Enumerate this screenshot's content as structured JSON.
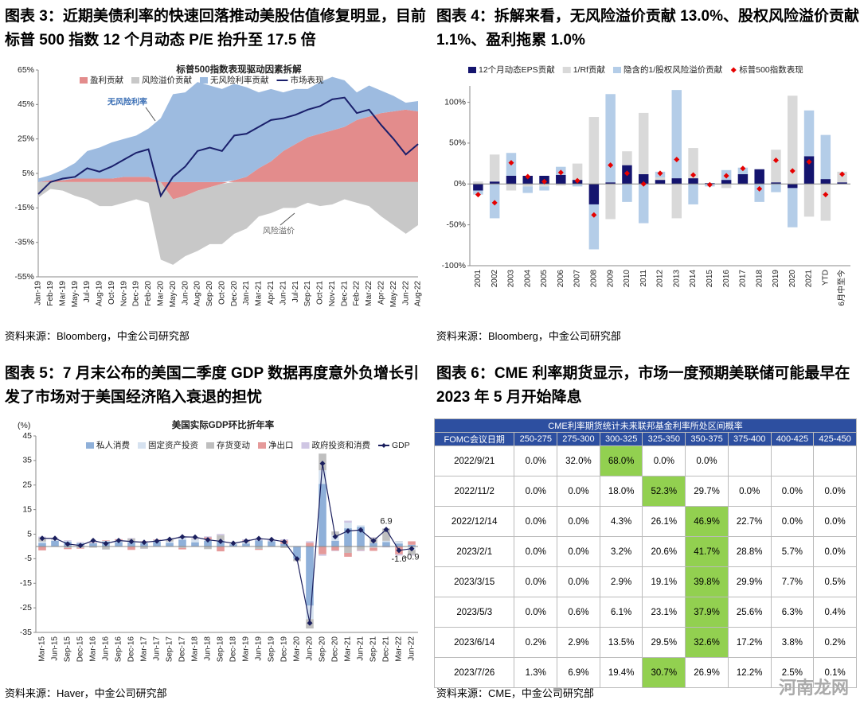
{
  "figures": [
    {
      "heading": "图表 3：近期美债利率的快速回落推动美股估值修复明显，目前标普 500 指数 12 个月动态 P/E 抬升至 17.5 倍",
      "source": "资料来源：Bloomberg，中金公司研究部"
    },
    {
      "heading": "图表 4：拆解来看，无风险溢价贡献 13.0%、股权风险溢价贡献 1.1%、盈利拖累 1.0%",
      "source": "资料来源：Bloomberg，中金公司研究部"
    },
    {
      "heading": "图表 5：7 月末公布的美国二季度 GDP 数据再度意外负增长引发了市场对于美国经济陷入衰退的担忧",
      "source": "资料来源：Haver，中金公司研究部"
    },
    {
      "heading": "图表 6：CME 利率期货显示，市场一度预期美联储可能最早在 2023 年 5 月开始降息",
      "source": "资料来源：CME，中金公司研究部"
    }
  ],
  "chart_data": [
    {
      "type": "area",
      "title": "标普500指数表现驱动因素拆解",
      "categories": [
        "Jan-19",
        "Feb-19",
        "Mar-19",
        "May-19",
        "Jul-19",
        "Aug-19",
        "Oct-19",
        "Nov-19",
        "Dec-19",
        "Feb-20",
        "Mar-20",
        "May-20",
        "Jun-20",
        "Aug-20",
        "Sep-20",
        "Oct-20",
        "Dec-20",
        "Jan-21",
        "Mar-21",
        "Apr-21",
        "Jun-21",
        "Jul-21",
        "Sep-21",
        "Oct-21",
        "Nov-21",
        "Dec-21",
        "Feb-22",
        "Mar-22",
        "Apr-22",
        "May-22",
        "Jun-22",
        "Aug-22"
      ],
      "series": [
        {
          "name": "盈利贡献",
          "type": "area",
          "color": "#e38c8c",
          "values": [
            0,
            1,
            1,
            2,
            2,
            2,
            2,
            3,
            3,
            3,
            0,
            -10,
            -8,
            -5,
            -3,
            -1,
            1,
            3,
            8,
            12,
            18,
            22,
            26,
            28,
            30,
            32,
            36,
            38,
            40,
            41,
            42,
            41
          ]
        },
        {
          "name": "风险溢价贡献",
          "type": "area",
          "color": "#c8c8c8",
          "values": [
            -9,
            -4,
            -5,
            -8,
            -10,
            -14,
            -14,
            -12,
            -10,
            -12,
            -45,
            -38,
            -35,
            -35,
            -33,
            -35,
            -30,
            -27,
            -20,
            -18,
            -15,
            -15,
            -12,
            -14,
            -13,
            -10,
            -12,
            -14,
            -20,
            -25,
            -30,
            -25
          ]
        },
        {
          "name": "无风险利率贡献",
          "type": "area",
          "color": "#9dbbe0",
          "values": [
            2,
            3,
            6,
            9,
            16,
            18,
            21,
            22,
            24,
            28,
            37,
            51,
            52,
            58,
            56,
            54,
            56,
            52,
            44,
            42,
            34,
            32,
            28,
            30,
            31,
            27,
            16,
            18,
            13,
            9,
            4,
            6
          ]
        },
        {
          "name": "市场表现",
          "type": "line",
          "color": "#1a1f6b",
          "values": [
            -7,
            0,
            2,
            3,
            8,
            6,
            9,
            13,
            17,
            19,
            -8,
            3,
            9,
            18,
            20,
            18,
            27,
            28,
            32,
            36,
            37,
            39,
            42,
            44,
            48,
            49,
            40,
            42,
            33,
            25,
            16,
            22
          ]
        }
      ],
      "ylim": [
        -55,
        65
      ],
      "yticks": [
        {
          "value": 65,
          "label": "65%"
        },
        {
          "value": 45,
          "label": "45%"
        },
        {
          "value": 25,
          "label": "25%"
        },
        {
          "value": 5,
          "label": "5%"
        },
        {
          "value": -15,
          "label": "-15%"
        },
        {
          "value": -35,
          "label": "-35%"
        },
        {
          "value": -55,
          "label": "-55%"
        }
      ],
      "annotations": [
        "无风险利率",
        "风险溢价"
      ],
      "legend": "top",
      "grid": false
    },
    {
      "type": "bar",
      "categories": [
        "2001",
        "2002",
        "2003",
        "2004",
        "2005",
        "2006",
        "2007",
        "2008",
        "2009",
        "2010",
        "2011",
        "2012",
        "2013",
        "2014",
        "2015",
        "2016",
        "2017",
        "2018",
        "2019",
        "2020",
        "2021",
        "YTD",
        "6月中至今"
      ],
      "series": [
        {
          "name": "12个月动态EPS贡献",
          "type": "bar",
          "color": "#14146e",
          "values": [
            -8,
            3,
            10,
            10,
            10,
            11,
            5,
            -25,
            2,
            23,
            12,
            5,
            7,
            7,
            1,
            5,
            12,
            18,
            2,
            -5,
            34,
            6,
            2
          ]
        },
        {
          "name": "1/Rf贡献",
          "type": "bar",
          "color": "#d9d9d9",
          "values": [
            3,
            33,
            -8,
            -3,
            -3,
            -2,
            20,
            82,
            -43,
            17,
            75,
            3,
            -42,
            37,
            0,
            -5,
            -1,
            0,
            40,
            108,
            -40,
            -45,
            13
          ]
        },
        {
          "name": "隐含的1/股权风险溢价贡献",
          "type": "bar",
          "color": "#b4cde8",
          "values": [
            -5,
            -42,
            28,
            -8,
            -5,
            10,
            -3,
            -55,
            108,
            -22,
            -48,
            7,
            108,
            -25,
            -3,
            12,
            8,
            -22,
            -10,
            -48,
            56,
            54,
            0
          ]
        },
        {
          "name": "标普500指数表现",
          "type": "scatter",
          "color": "#e60000",
          "values": [
            -13,
            -23,
            26,
            9,
            3,
            14,
            4,
            -38,
            23,
            13,
            0,
            13,
            30,
            11,
            -1,
            10,
            19,
            -6,
            29,
            16,
            27,
            -13,
            12
          ]
        }
      ],
      "ylim": [
        -100,
        120
      ],
      "yticks": [
        {
          "value": 100,
          "label": "100%"
        },
        {
          "value": 50,
          "label": "50%"
        },
        {
          "value": 0,
          "label": "0%"
        },
        {
          "value": -50,
          "label": "-50%"
        },
        {
          "value": -100,
          "label": "-100%"
        }
      ],
      "legend": "top",
      "grid": false
    },
    {
      "type": "bar",
      "title": "美国实际GDP环比折年率",
      "unit": "(%)",
      "categories": [
        "Mar-15",
        "Jun-15",
        "Sep-15",
        "Dec-15",
        "Mar-16",
        "Jun-16",
        "Sep-16",
        "Dec-16",
        "Mar-17",
        "Jun-17",
        "Sep-17",
        "Dec-17",
        "Mar-18",
        "Jun-18",
        "Sep-18",
        "Dec-18",
        "Mar-19",
        "Jun-19",
        "Sep-19",
        "Dec-19",
        "Mar-20",
        "Jun-20",
        "Sep-20",
        "Dec-20",
        "Mar-21",
        "Jun-21",
        "Sep-21",
        "Dec-21",
        "Mar-22",
        "Jun-22"
      ],
      "series": [
        {
          "name": "私人消费",
          "type": "bar",
          "color": "#8fb0d9",
          "values": [
            1.4,
            2.3,
            1.9,
            1.3,
            1.3,
            2.0,
            1.8,
            1.6,
            1.3,
            1.9,
            1.5,
            2.7,
            1.7,
            2.3,
            2.4,
            0.9,
            1.2,
            2.5,
            2.1,
            1.1,
            -4.9,
            -24.1,
            25.5,
            2.3,
            7.4,
            8.0,
            1.4,
            1.8,
            1.2,
            0.7
          ]
        },
        {
          "name": "固定资产投资",
          "type": "bar",
          "color": "#d6e2f0",
          "values": [
            0.6,
            0.4,
            0.3,
            0.2,
            0.2,
            0.3,
            0.3,
            0.6,
            0.8,
            0.5,
            0.5,
            1.0,
            1.1,
            0.6,
            0.1,
            0.4,
            0.5,
            -0.1,
            0.1,
            0.0,
            -0.3,
            -5.5,
            5.5,
            2.3,
            2.3,
            0.6,
            -0.5,
            0.5,
            0.9,
            -1.4
          ]
        },
        {
          "name": "存货变动",
          "type": "bar",
          "color": "#bfbfbf",
          "values": [
            1.5,
            0.2,
            -0.6,
            -0.6,
            -0.5,
            -1.2,
            0.4,
            1.0,
            -0.9,
            0.2,
            1.0,
            -0.6,
            0.3,
            -1.1,
            2.1,
            0.1,
            0.4,
            -0.9,
            -0.1,
            -0.6,
            -0.8,
            -3.8,
            6.8,
            1.5,
            -2.6,
            -1.3,
            2.2,
            5.0,
            0.1,
            -2.0
          ]
        },
        {
          "name": "净出口",
          "type": "bar",
          "color": "#e59a9a",
          "values": [
            -1.6,
            0.0,
            -0.5,
            -0.3,
            0.1,
            0.2,
            0.4,
            -1.4,
            0.1,
            0.2,
            0.0,
            -0.6,
            0.0,
            0.8,
            -2.0,
            -0.1,
            0.3,
            -0.4,
            -0.1,
            1.4,
            0.0,
            1.5,
            -3.2,
            -1.7,
            -1.6,
            -0.2,
            -1.3,
            -0.2,
            -3.2,
            1.4
          ]
        },
        {
          "name": "政府投资和消费",
          "type": "bar",
          "color": "#cfc6e3",
          "values": [
            0.5,
            0.4,
            0.3,
            0.3,
            0.4,
            -0.1,
            0.1,
            0.2,
            -0.1,
            0.1,
            0.1,
            0.5,
            0.3,
            0.4,
            0.5,
            -0.1,
            0.5,
            0.8,
            0.6,
            0.4,
            0.2,
            0.6,
            -0.6,
            -0.2,
            0.8,
            -0.4,
            0.2,
            -0.2,
            -0.5,
            -0.3
          ]
        },
        {
          "name": "GDP",
          "type": "line",
          "marker": "diamond",
          "color": "#1b1f5e",
          "values": [
            3.3,
            3.3,
            1.0,
            0.4,
            2.4,
            1.2,
            2.4,
            2.0,
            1.7,
            2.2,
            2.9,
            3.9,
            3.8,
            2.7,
            2.1,
            1.3,
            2.2,
            3.2,
            2.8,
            1.9,
            -5.1,
            -31.2,
            33.8,
            4.0,
            6.3,
            6.7,
            2.3,
            6.9,
            -1.6,
            -0.9
          ],
          "value_labels": [
            null,
            null,
            null,
            null,
            null,
            null,
            null,
            null,
            null,
            null,
            null,
            null,
            null,
            null,
            null,
            null,
            null,
            null,
            null,
            null,
            null,
            null,
            null,
            null,
            null,
            null,
            null,
            "6.9",
            "-1.6",
            "-0.9"
          ]
        }
      ],
      "ylim": [
        -35,
        45
      ],
      "yticks": [
        45,
        35,
        25,
        15,
        5,
        -5,
        -15,
        -25,
        -35
      ],
      "legend": "top",
      "grid": false
    }
  ],
  "table": {
    "title": "CME利率期货统计未来联邦基金利率所处区间概率",
    "columns": [
      "FOMC会议日期",
      "250-275",
      "275-300",
      "300-325",
      "325-350",
      "350-375",
      "375-400",
      "400-425",
      "425-450"
    ],
    "rows": [
      [
        "2022/9/21",
        "0.0%",
        "32.0%",
        "68.0%",
        "0.0%",
        "0.0%",
        null,
        null,
        null
      ],
      [
        "2022/11/2",
        "0.0%",
        "0.0%",
        "18.0%",
        "52.3%",
        "29.7%",
        "0.0%",
        "0.0%",
        "0.0%"
      ],
      [
        "2022/12/14",
        "0.0%",
        "0.0%",
        "4.3%",
        "26.1%",
        "46.9%",
        "22.7%",
        "0.0%",
        "0.0%"
      ],
      [
        "2023/2/1",
        "0.0%",
        "0.0%",
        "3.2%",
        "20.6%",
        "41.7%",
        "28.8%",
        "5.7%",
        "0.0%"
      ],
      [
        "2023/3/15",
        "0.0%",
        "0.0%",
        "2.9%",
        "19.1%",
        "39.8%",
        "29.9%",
        "7.7%",
        "0.5%"
      ],
      [
        "2023/5/3",
        "0.0%",
        "0.6%",
        "6.1%",
        "23.1%",
        "37.9%",
        "25.6%",
        "6.3%",
        "0.4%"
      ],
      [
        "2023/6/14",
        "0.2%",
        "2.9%",
        "13.5%",
        "29.5%",
        "32.6%",
        "17.2%",
        "3.8%",
        "0.2%"
      ],
      [
        "2023/7/26",
        "1.3%",
        "6.9%",
        "19.4%",
        "30.7%",
        "26.9%",
        "12.2%",
        "2.5%",
        "0.1%"
      ]
    ],
    "highlight": [
      3,
      4,
      5,
      5,
      5,
      5,
      5,
      4
    ],
    "highlight_color": "#92d050"
  },
  "watermark": "河南龙网"
}
